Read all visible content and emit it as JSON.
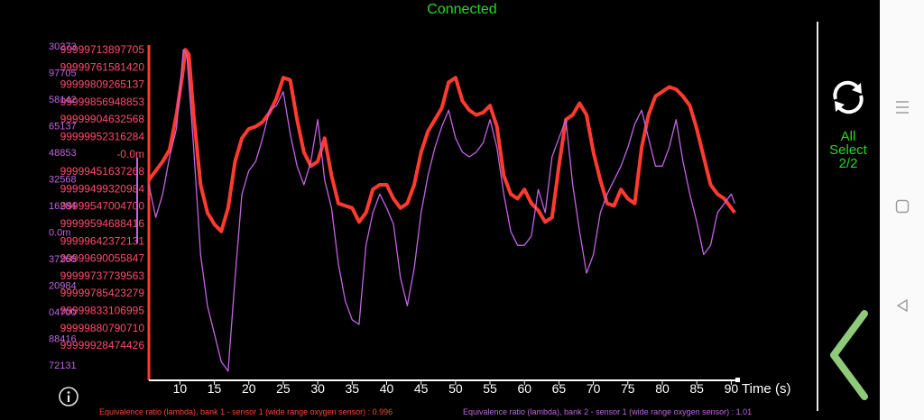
{
  "status": "Connected",
  "controls": {
    "select_line1": "All",
    "select_line2": "Select",
    "select_line3": "2/2"
  },
  "legend": {
    "series1": "Equivalence ratio (lambda), bank 1 - sensor 1 (wide range oxygen sensor) : 0.996",
    "series2": "Equivalence ratio (lambda), bank 2 - sensor 1 (wide range oxygen sensor) : 1.01"
  },
  "chart_data": {
    "type": "line",
    "xlabel": "Time (s)",
    "xlim": [
      5.5,
      91
    ],
    "x_ticks": [
      10,
      15,
      20,
      25,
      30,
      35,
      40,
      45,
      50,
      55,
      60,
      65,
      70,
      75,
      80,
      85,
      90
    ],
    "series": [
      {
        "name": "Equivalence ratio (lambda), bank 1 - sensor 1 (wide range oxygen sensor)",
        "color": "#ff3b30",
        "points": [
          [
            5.5,
            2.9
          ],
          [
            6.5,
            2.7
          ],
          [
            7.5,
            2.5
          ],
          [
            8.5,
            2.25
          ],
          [
            9.5,
            1.5
          ],
          [
            10.3,
            0.7
          ],
          [
            10.8,
            0.1
          ],
          [
            11.3,
            0.2
          ],
          [
            12,
            1.5
          ],
          [
            13,
            3.0
          ],
          [
            14,
            3.6
          ],
          [
            15,
            3.85
          ],
          [
            16,
            4.0
          ],
          [
            17,
            3.5
          ],
          [
            18,
            2.5
          ],
          [
            19,
            2.0
          ],
          [
            20,
            1.8
          ],
          [
            21,
            1.75
          ],
          [
            22,
            1.65
          ],
          [
            23,
            1.45
          ],
          [
            24,
            1.15
          ],
          [
            25,
            0.7
          ],
          [
            26,
            0.75
          ],
          [
            27,
            1.6
          ],
          [
            28,
            2.3
          ],
          [
            29,
            2.6
          ],
          [
            30,
            2.5
          ],
          [
            31,
            2.0
          ],
          [
            32,
            2.8
          ],
          [
            33,
            3.4
          ],
          [
            34,
            3.45
          ],
          [
            35,
            3.5
          ],
          [
            36,
            3.8
          ],
          [
            37,
            3.6
          ],
          [
            38,
            3.1
          ],
          [
            39,
            3.0
          ],
          [
            40,
            3.0
          ],
          [
            41,
            3.3
          ],
          [
            42,
            3.5
          ],
          [
            43,
            3.4
          ],
          [
            44,
            3.0
          ],
          [
            45,
            2.3
          ],
          [
            46,
            1.85
          ],
          [
            47,
            1.6
          ],
          [
            48,
            1.35
          ],
          [
            49,
            0.8
          ],
          [
            50,
            0.7
          ],
          [
            51,
            1.2
          ],
          [
            52,
            1.4
          ],
          [
            53,
            1.5
          ],
          [
            54,
            1.45
          ],
          [
            55,
            1.3
          ],
          [
            56,
            1.75
          ],
          [
            57,
            2.8
          ],
          [
            58,
            3.2
          ],
          [
            59,
            3.3
          ],
          [
            60,
            3.1
          ],
          [
            61,
            3.4
          ],
          [
            62,
            3.55
          ],
          [
            63,
            3.8
          ],
          [
            64,
            3.7
          ],
          [
            65,
            2.6
          ],
          [
            66,
            1.6
          ],
          [
            67,
            1.5
          ],
          [
            68,
            1.25
          ],
          [
            69,
            1.5
          ],
          [
            70,
            2.3
          ],
          [
            71,
            2.9
          ],
          [
            72,
            3.4
          ],
          [
            73,
            3.45
          ],
          [
            74,
            3.1
          ],
          [
            75,
            3.3
          ],
          [
            76,
            3.4
          ],
          [
            77,
            2.2
          ],
          [
            78,
            1.5
          ],
          [
            79,
            1.1
          ],
          [
            80,
            1.0
          ],
          [
            81,
            0.9
          ],
          [
            82,
            0.95
          ],
          [
            83,
            1.1
          ],
          [
            84,
            1.3
          ],
          [
            85,
            1.8
          ],
          [
            86,
            2.4
          ],
          [
            87,
            3.0
          ],
          [
            88,
            3.2
          ],
          [
            89,
            3.3
          ],
          [
            90,
            3.5
          ],
          [
            90.5,
            3.6
          ]
        ]
      },
      {
        "name": "Equivalence ratio (lambda), bank 2 - sensor 1 (wide range oxygen sensor)",
        "color": "#c264e2",
        "points": [
          [
            5.5,
            3.0
          ],
          [
            6.5,
            3.7
          ],
          [
            7.5,
            3.2
          ],
          [
            8.5,
            2.4
          ],
          [
            9.5,
            1.8
          ],
          [
            10.5,
            0.1
          ],
          [
            11,
            0.2
          ],
          [
            12,
            2.2
          ],
          [
            13,
            4.5
          ],
          [
            14,
            5.6
          ],
          [
            15,
            6.2
          ],
          [
            16,
            6.8
          ],
          [
            17,
            7.0
          ],
          [
            18,
            5.0
          ],
          [
            19,
            3.2
          ],
          [
            20,
            2.7
          ],
          [
            21,
            2.5
          ],
          [
            22,
            2.0
          ],
          [
            23,
            1.4
          ],
          [
            24,
            1.3
          ],
          [
            25,
            1.0
          ],
          [
            26,
            1.9
          ],
          [
            27,
            2.6
          ],
          [
            28,
            3.0
          ],
          [
            29,
            2.5
          ],
          [
            30,
            1.6
          ],
          [
            31,
            2.9
          ],
          [
            32,
            3.5
          ],
          [
            33,
            4.7
          ],
          [
            34,
            5.5
          ],
          [
            35,
            5.9
          ],
          [
            36,
            6.0
          ],
          [
            37,
            4.3
          ],
          [
            38,
            3.6
          ],
          [
            39,
            3.2
          ],
          [
            40,
            3.5
          ],
          [
            41,
            3.85
          ],
          [
            42,
            5.0
          ],
          [
            43,
            5.6
          ],
          [
            44,
            4.8
          ],
          [
            45,
            3.6
          ],
          [
            46,
            2.8
          ],
          [
            47,
            2.2
          ],
          [
            48,
            1.75
          ],
          [
            49,
            1.4
          ],
          [
            50,
            2.0
          ],
          [
            51,
            2.3
          ],
          [
            52,
            2.4
          ],
          [
            53,
            2.3
          ],
          [
            54,
            2.1
          ],
          [
            55,
            1.6
          ],
          [
            56,
            2.2
          ],
          [
            57,
            3.2
          ],
          [
            58,
            4.0
          ],
          [
            59,
            4.3
          ],
          [
            60,
            4.3
          ],
          [
            61,
            4.1
          ],
          [
            62,
            3.1
          ],
          [
            63,
            3.6
          ],
          [
            64,
            2.4
          ],
          [
            65,
            2.0
          ],
          [
            66,
            1.6
          ],
          [
            67,
            3.0
          ],
          [
            68,
            4.0
          ],
          [
            69,
            4.9
          ],
          [
            70,
            4.5
          ],
          [
            71,
            3.6
          ],
          [
            72,
            3.2
          ],
          [
            73,
            2.9
          ],
          [
            74,
            2.6
          ],
          [
            75,
            2.2
          ],
          [
            76,
            1.7
          ],
          [
            77,
            1.4
          ],
          [
            78,
            2.0
          ],
          [
            79,
            2.6
          ],
          [
            80,
            2.6
          ],
          [
            81,
            2.2
          ],
          [
            82,
            1.6
          ],
          [
            83,
            2.5
          ],
          [
            84,
            3.2
          ],
          [
            85,
            3.8
          ],
          [
            86,
            4.5
          ],
          [
            87,
            4.3
          ],
          [
            88,
            3.6
          ],
          [
            89,
            3.4
          ],
          [
            90,
            3.2
          ],
          [
            90.5,
            3.4
          ]
        ]
      }
    ],
    "y_axis_labels": {
      "series1": [
        "99999713897705",
        "99999761581420",
        "99999809265137",
        "99999856948853",
        "99999904632568",
        "99999952316284",
        "-0.0m",
        "99999451637268",
        "99999499320984",
        "99999547004700",
        "99999594688416",
        "99999642372131",
        "99999690055847",
        "99999737739563",
        "99999785423279",
        "99999833106995",
        "99999880790710",
        "99999928474426"
      ],
      "series2": [
        "30273",
        "97705",
        "58142",
        "65137",
        "48853",
        "32568",
        "16284",
        "0.0m",
        "37268",
        "20984",
        "04700",
        "88416",
        "72131"
      ]
    }
  }
}
